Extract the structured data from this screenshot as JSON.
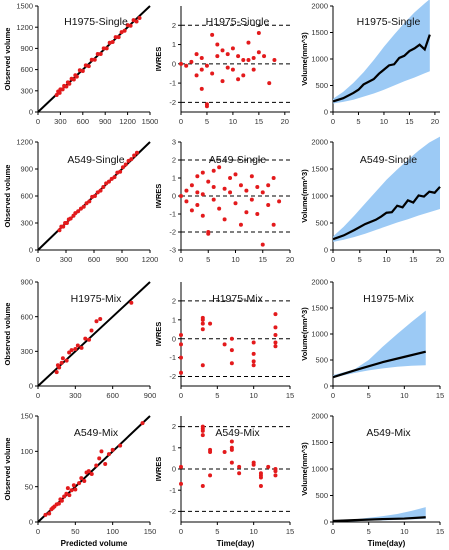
{
  "figure": {
    "axis_labels": {
      "observed": "Observed volume",
      "iwres": "IWRES",
      "volume": "Volume(mm^3)",
      "predicted": "Predicted volume",
      "time": "Time(day)"
    }
  },
  "colors": {
    "points": "#e31a1c",
    "ribbon": "#9ccaf5",
    "line": "#000000",
    "dashed": "#000000"
  },
  "chart_data": [
    {
      "type": "scatter",
      "panel": "obs-vs-pred",
      "title": "H1975-Single",
      "ylabel": "Observed volume",
      "xlabel": "",
      "xlim": [
        0,
        1500
      ],
      "ylim": [
        0,
        1500
      ],
      "xticks": [
        0,
        300,
        600,
        900,
        1200,
        1500
      ],
      "yticks": [
        0,
        300,
        600,
        900,
        1200,
        1500
      ],
      "x": [
        250,
        270,
        290,
        300,
        330,
        350,
        380,
        400,
        420,
        450,
        480,
        500,
        520,
        560,
        600,
        640,
        680,
        720,
        760,
        800,
        840,
        880,
        920,
        960,
        1000,
        1040,
        1080,
        1120,
        1160,
        1200,
        1240,
        1280,
        1320,
        1360
      ],
      "y": [
        240,
        290,
        270,
        320,
        320,
        370,
        360,
        420,
        400,
        470,
        460,
        520,
        500,
        590,
        580,
        660,
        650,
        740,
        740,
        820,
        820,
        900,
        900,
        980,
        990,
        1060,
        1060,
        1130,
        1150,
        1230,
        1220,
        1300,
        1280,
        1330
      ]
    },
    {
      "type": "scatter",
      "panel": "iwres",
      "title": "H1975-Single",
      "ylabel": "IWRES",
      "xlabel": "",
      "xlim": [
        0,
        21
      ],
      "ylim": [
        -2.5,
        3
      ],
      "xticks": [
        0,
        5,
        10,
        15,
        20
      ],
      "yticks": [
        -2,
        -1,
        0,
        1,
        2
      ],
      "refs": [
        -2,
        0,
        2
      ],
      "x": [
        0,
        1,
        2,
        3,
        3,
        4,
        4,
        4,
        5,
        5,
        5,
        6,
        6,
        7,
        7,
        8,
        8,
        9,
        9,
        10,
        10,
        11,
        11,
        12,
        12,
        13,
        13,
        14,
        14,
        15,
        15,
        16,
        17,
        18
      ],
      "y": [
        0,
        -0.1,
        0.1,
        -0.6,
        0.5,
        -1.3,
        0.3,
        -0.3,
        -2.1,
        -2.2,
        -0.1,
        1.5,
        -0.5,
        1.0,
        0.4,
        -0.9,
        0.7,
        -0.2,
        0.5,
        0.8,
        -0.3,
        -0.8,
        0.4,
        0.2,
        -0.6,
        1.1,
        0.2,
        0.3,
        -0.3,
        1.6,
        0.6,
        0.4,
        -1.0,
        0.2
      ]
    },
    {
      "type": "line",
      "panel": "vpc",
      "title": "H1975-Single",
      "ylabel": "Volume(mm^3)",
      "xlabel": "",
      "xlim": [
        0,
        21
      ],
      "ylim": [
        0,
        2000
      ],
      "xticks": [
        0,
        5,
        10,
        15,
        20
      ],
      "yticks": [
        0,
        500,
        1000,
        1500,
        2000
      ],
      "median_x": [
        0,
        2,
        4,
        5,
        6,
        8,
        9,
        10,
        11,
        12,
        13,
        14,
        15,
        16,
        17,
        18,
        19
      ],
      "median_y": [
        200,
        260,
        360,
        420,
        520,
        620,
        720,
        800,
        880,
        900,
        1020,
        1060,
        1150,
        1200,
        1270,
        1180,
        1460
      ],
      "band_x": [
        0,
        2,
        4,
        6,
        8,
        10,
        12,
        14,
        16,
        18,
        19
      ],
      "band_lo": [
        160,
        190,
        230,
        290,
        350,
        420,
        500,
        580,
        650,
        730,
        770
      ],
      "band_hi": [
        250,
        380,
        550,
        750,
        980,
        1230,
        1460,
        1680,
        1880,
        2050,
        2130
      ]
    },
    {
      "type": "scatter",
      "panel": "obs-vs-pred",
      "title": "A549-Single",
      "ylabel": "Observed volume",
      "xlabel": "",
      "xlim": [
        0,
        1200
      ],
      "ylim": [
        0,
        1200
      ],
      "xticks": [
        0,
        300,
        600,
        900,
        1200
      ],
      "yticks": [
        0,
        300,
        600,
        900,
        1200
      ],
      "x": [
        230,
        250,
        270,
        290,
        310,
        330,
        350,
        380,
        400,
        430,
        460,
        490,
        520,
        550,
        580,
        610,
        640,
        670,
        700,
        730,
        760,
        790,
        820,
        850,
        880,
        910,
        940,
        970,
        1000,
        1030,
        1060
      ],
      "y": [
        220,
        260,
        260,
        300,
        300,
        340,
        350,
        380,
        410,
        430,
        460,
        480,
        520,
        540,
        590,
        600,
        640,
        660,
        700,
        740,
        760,
        790,
        810,
        860,
        870,
        920,
        950,
        990,
        1010,
        1050,
        1080
      ]
    },
    {
      "type": "scatter",
      "panel": "iwres",
      "title": "A549-Single",
      "ylabel": "IWRES",
      "xlabel": "",
      "xlim": [
        0,
        20
      ],
      "ylim": [
        -3,
        3
      ],
      "xticks": [
        0,
        5,
        10,
        15,
        20
      ],
      "yticks": [
        -3,
        -2,
        -1,
        0,
        1,
        2,
        3
      ],
      "refs": [
        -2,
        0,
        2
      ],
      "x": [
        0,
        1,
        1,
        2,
        2,
        3,
        3,
        3,
        4,
        4,
        4,
        5,
        5,
        5,
        6,
        6,
        6,
        7,
        7,
        8,
        8,
        9,
        9,
        10,
        10,
        11,
        11,
        12,
        12,
        13,
        13,
        14,
        14,
        15,
        15,
        16,
        16,
        17,
        17,
        18
      ],
      "y": [
        0,
        0.3,
        -0.3,
        0.6,
        -0.8,
        1.1,
        0.2,
        -0.5,
        1.3,
        -1.1,
        0.1,
        -2.0,
        0.8,
        -2.1,
        1.4,
        -0.2,
        0.5,
        1.6,
        -0.7,
        0.4,
        -1.3,
        1.0,
        0.2,
        -0.4,
        1.2,
        -1.6,
        0.6,
        0.3,
        -0.9,
        1.1,
        -0.2,
        0.5,
        -1.0,
        0.2,
        -2.7,
        0.6,
        -0.5,
        1.0,
        -1.6,
        -0.3
      ]
    },
    {
      "type": "line",
      "panel": "vpc",
      "title": "A549-Single",
      "ylabel": "Volume(mm^3)",
      "xlabel": "",
      "xlim": [
        0,
        20
      ],
      "ylim": [
        0,
        2000
      ],
      "xticks": [
        0,
        5,
        10,
        15,
        20
      ],
      "yticks": [
        0,
        500,
        1000,
        1500,
        2000
      ],
      "median_x": [
        0,
        2,
        4,
        6,
        8,
        9,
        10,
        11,
        12,
        13,
        14,
        15,
        16,
        17,
        18,
        19,
        20
      ],
      "median_y": [
        200,
        270,
        370,
        480,
        560,
        620,
        690,
        700,
        820,
        790,
        920,
        880,
        1010,
        990,
        1080,
        1060,
        1170
      ],
      "band_x": [
        0,
        2,
        4,
        6,
        8,
        10,
        12,
        14,
        16,
        18,
        20
      ],
      "band_lo": [
        150,
        190,
        240,
        300,
        370,
        440,
        510,
        570,
        640,
        700,
        760
      ],
      "band_hi": [
        250,
        430,
        640,
        860,
        1080,
        1300,
        1490,
        1670,
        1840,
        1990,
        2100
      ]
    },
    {
      "type": "scatter",
      "panel": "obs-vs-pred",
      "title": "H1975-Mix",
      "ylabel": "Observed volume",
      "xlabel": "",
      "xlim": [
        0,
        900
      ],
      "ylim": [
        0,
        900
      ],
      "xticks": [
        0,
        300,
        600,
        900
      ],
      "yticks": [
        0,
        300,
        600,
        900
      ],
      "x": [
        150,
        160,
        170,
        190,
        200,
        230,
        250,
        270,
        300,
        320,
        350,
        380,
        410,
        430,
        470,
        500,
        750
      ],
      "y": [
        120,
        180,
        160,
        200,
        240,
        220,
        290,
        310,
        320,
        350,
        330,
        410,
        400,
        480,
        560,
        580,
        720
      ]
    },
    {
      "type": "scatter",
      "panel": "iwres",
      "title": "H1975-Mix",
      "ylabel": "IWRES",
      "xlabel": "",
      "xlim": [
        0,
        15
      ],
      "ylim": [
        -2.5,
        3
      ],
      "xticks": [
        0,
        5,
        10,
        15
      ],
      "yticks": [
        -2,
        -1,
        0,
        1,
        2
      ],
      "refs": [
        -2,
        0,
        2
      ],
      "x": [
        0,
        0,
        0,
        0,
        3,
        3,
        3,
        3,
        3,
        4,
        6,
        7,
        7,
        7,
        10,
        10,
        10,
        10,
        13,
        13,
        13,
        13,
        13
      ],
      "y": [
        0.2,
        -0.3,
        -1.0,
        -1.8,
        0.8,
        1.0,
        1.1,
        0.5,
        -1.4,
        0.8,
        -0.3,
        0.0,
        -0.6,
        -1.3,
        -0.2,
        -0.8,
        -1.2,
        -1.4,
        1.3,
        0.6,
        -0.2,
        0.2,
        -0.4
      ]
    },
    {
      "type": "line",
      "panel": "vpc",
      "title": "H1975-Mix",
      "ylabel": "Volume(mm^3)",
      "xlabel": "",
      "xlim": [
        0,
        15
      ],
      "ylim": [
        0,
        2000
      ],
      "xticks": [
        0,
        5,
        10,
        15
      ],
      "yticks": [
        0,
        500,
        1000,
        1500,
        2000
      ],
      "median_x": [
        0,
        3,
        4,
        7,
        10,
        13
      ],
      "median_y": [
        170,
        300,
        340,
        460,
        560,
        660
      ],
      "band_x": [
        0,
        3,
        5,
        7,
        9,
        11,
        13
      ],
      "band_lo": [
        160,
        250,
        300,
        340,
        370,
        390,
        400
      ],
      "band_hi": [
        210,
        320,
        500,
        760,
        1000,
        1230,
        1450
      ]
    },
    {
      "type": "scatter",
      "panel": "obs-vs-pred",
      "title": "A549-Mix",
      "ylabel": "Observed volume",
      "xlabel": "Predicted volume",
      "xlim": [
        0,
        150
      ],
      "ylim": [
        0,
        150
      ],
      "xticks": [
        0,
        50,
        100,
        150
      ],
      "yticks": [
        0,
        50,
        100,
        150
      ],
      "x": [
        10,
        15,
        18,
        20,
        22,
        25,
        28,
        30,
        32,
        35,
        38,
        40,
        42,
        45,
        48,
        50,
        55,
        58,
        62,
        65,
        68,
        72,
        78,
        82,
        85,
        90,
        95,
        100,
        110,
        140
      ],
      "y": [
        10,
        12,
        18,
        20,
        22,
        25,
        26,
        32,
        30,
        36,
        40,
        48,
        38,
        45,
        52,
        46,
        55,
        62,
        58,
        70,
        72,
        68,
        80,
        90,
        100,
        82,
        96,
        102,
        108,
        140
      ]
    },
    {
      "type": "scatter",
      "panel": "iwres",
      "title": "A549-Mix",
      "ylabel": "IWRES",
      "xlabel": "Time(day)",
      "xlim": [
        0,
        15
      ],
      "ylim": [
        -2.5,
        2.5
      ],
      "xticks": [
        0,
        5,
        10,
        15
      ],
      "yticks": [
        -2,
        -1,
        0,
        1,
        2
      ],
      "refs": [
        -2,
        0,
        2
      ],
      "x": [
        0,
        0,
        3,
        3,
        3,
        3,
        3,
        4,
        4,
        4,
        6,
        7,
        7,
        7,
        7,
        8,
        8,
        10,
        10,
        11,
        11,
        11,
        11,
        12,
        13,
        13,
        13
      ],
      "y": [
        0.1,
        -0.7,
        1.8,
        1.6,
        1.9,
        2.0,
        -0.8,
        0.9,
        0.8,
        -0.3,
        0.8,
        1.0,
        1.3,
        0.9,
        0.3,
        -0.2,
        0.1,
        0.2,
        0.3,
        -0.3,
        -0.8,
        -0.2,
        -0.4,
        0.1,
        0.0,
        -0.3,
        -0.1
      ]
    },
    {
      "type": "line",
      "panel": "vpc",
      "title": "A549-Mix",
      "ylabel": "Volume(mm^3)",
      "xlabel": "Time(day)",
      "xlim": [
        0,
        15
      ],
      "ylim": [
        0,
        2000
      ],
      "xticks": [
        0,
        5,
        10,
        15
      ],
      "yticks": [
        0,
        500,
        1000,
        1500,
        2000
      ],
      "median_x": [
        0,
        3,
        7,
        10,
        13
      ],
      "median_y": [
        20,
        35,
        55,
        65,
        90
      ],
      "band_x": [
        0,
        3,
        5,
        7,
        9,
        11,
        13
      ],
      "band_lo": [
        10,
        15,
        25,
        30,
        40,
        50,
        60
      ],
      "band_hi": [
        30,
        50,
        80,
        110,
        150,
        210,
        280
      ]
    }
  ]
}
